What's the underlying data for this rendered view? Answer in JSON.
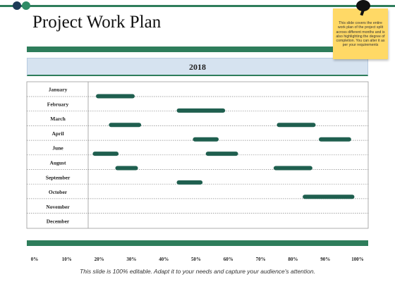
{
  "slide": {
    "title": "Project Work Plan",
    "note": "This slide covers the entire work plan of the project split across different months and is also highlighting the degree of completion. You can alter it as per your requirements",
    "footer": "This slide is 100% editable. Adapt it to your needs and capture your audience's attention."
  },
  "colors": {
    "accent": "#2e7d5b",
    "bar": "#1f5f4f",
    "header_fill": "#d6e3f0",
    "note_fill": "#ffd966"
  },
  "chart_data": {
    "type": "bar",
    "orientation": "horizontal-gantt",
    "title": "2018",
    "categories": [
      "January",
      "February",
      "March",
      "April",
      "June",
      "August",
      "September",
      "October",
      "November",
      "December"
    ],
    "x_ticks": [
      "0%",
      "10%",
      "20%",
      "30%",
      "40%",
      "50%",
      "60%",
      "70%",
      "80%",
      "90%",
      "100%"
    ],
    "xlim": [
      0,
      100
    ],
    "gridlines": true,
    "series": [
      {
        "segments": [
          {
            "lane": 0,
            "start": 19,
            "end": 31
          },
          {
            "lane": 1,
            "start": 44,
            "end": 59
          },
          {
            "lane": 2,
            "start": 23,
            "end": 33
          },
          {
            "lane": 2,
            "start": 75,
            "end": 87
          },
          {
            "lane": 3,
            "start": 49,
            "end": 57
          },
          {
            "lane": 3,
            "start": 88,
            "end": 98
          },
          {
            "lane": 4,
            "start": 18,
            "end": 26
          },
          {
            "lane": 4,
            "start": 53,
            "end": 63
          },
          {
            "lane": 5,
            "start": 25,
            "end": 32
          },
          {
            "lane": 5,
            "start": 74,
            "end": 86
          },
          {
            "lane": 6,
            "start": 44,
            "end": 52
          },
          {
            "lane": 7,
            "start": 83,
            "end": 99
          }
        ]
      }
    ]
  }
}
